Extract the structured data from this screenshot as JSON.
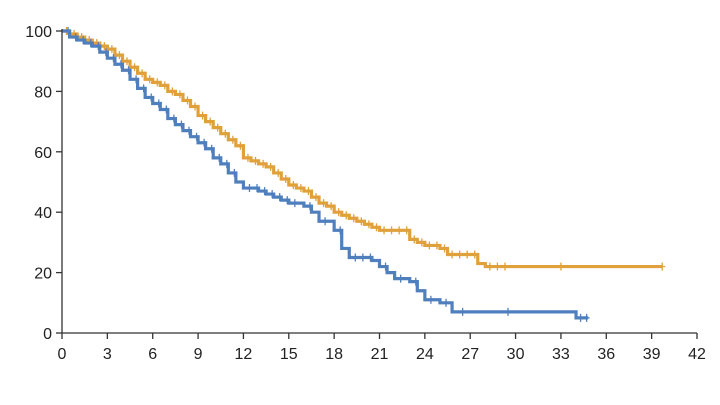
{
  "chart_data": {
    "type": "line",
    "title": "",
    "xlabel": "",
    "ylabel": "",
    "xlim": [
      0,
      42
    ],
    "ylim": [
      0,
      100
    ],
    "xticks": [
      0,
      3,
      6,
      9,
      12,
      15,
      18,
      21,
      24,
      27,
      30,
      33,
      36,
      39,
      42
    ],
    "yticks": [
      0,
      20,
      40,
      60,
      80,
      100
    ],
    "step": true,
    "grid": false,
    "legend": "none",
    "series": [
      {
        "color": "#e0a03a",
        "points": [
          [
            0,
            100
          ],
          [
            0.5,
            99
          ],
          [
            1.0,
            98
          ],
          [
            1.5,
            97
          ],
          [
            2.0,
            96
          ],
          [
            2.5,
            95
          ],
          [
            3.0,
            94
          ],
          [
            3.5,
            92
          ],
          [
            4.0,
            90
          ],
          [
            4.5,
            88
          ],
          [
            5.0,
            86
          ],
          [
            5.5,
            84
          ],
          [
            6.0,
            83
          ],
          [
            6.5,
            82
          ],
          [
            7.0,
            80
          ],
          [
            7.5,
            79
          ],
          [
            8.0,
            77
          ],
          [
            8.5,
            75
          ],
          [
            9.0,
            72
          ],
          [
            9.5,
            70
          ],
          [
            10.0,
            68
          ],
          [
            10.5,
            66
          ],
          [
            11.0,
            64
          ],
          [
            11.5,
            62
          ],
          [
            12.0,
            58
          ],
          [
            12.5,
            57
          ],
          [
            13.0,
            56
          ],
          [
            13.5,
            55
          ],
          [
            14.0,
            53
          ],
          [
            14.5,
            51
          ],
          [
            15.0,
            49
          ],
          [
            15.5,
            48
          ],
          [
            16.0,
            47
          ],
          [
            16.5,
            45
          ],
          [
            17.0,
            43
          ],
          [
            17.5,
            42
          ],
          [
            18.0,
            40
          ],
          [
            18.5,
            39
          ],
          [
            19.0,
            38
          ],
          [
            19.5,
            37
          ],
          [
            20.0,
            36
          ],
          [
            20.5,
            35
          ],
          [
            21.0,
            34
          ],
          [
            22.5,
            34
          ],
          [
            23.0,
            31
          ],
          [
            23.5,
            30
          ],
          [
            24.0,
            29
          ],
          [
            25.0,
            28
          ],
          [
            25.5,
            26
          ],
          [
            27.5,
            23
          ],
          [
            28.0,
            22
          ],
          [
            39.7,
            22
          ]
        ],
        "censored_x": [
          0.3,
          0.8,
          1.3,
          1.8,
          2.3,
          2.8,
          3.3,
          3.8,
          4.3,
          4.8,
          5.3,
          5.8,
          6.3,
          6.8,
          7.3,
          7.8,
          8.3,
          8.8,
          9.3,
          9.8,
          10.3,
          10.8,
          11.3,
          11.8,
          12.3,
          12.8,
          13.3,
          13.8,
          14.3,
          14.8,
          15.3,
          15.8,
          16.3,
          16.8,
          17.3,
          17.8,
          18.3,
          18.8,
          19.3,
          19.8,
          20.3,
          20.8,
          21.3,
          21.8,
          22.3,
          22.8,
          23.3,
          23.8,
          24.3,
          24.8,
          25.3,
          25.8,
          26.3,
          26.8,
          27.3,
          28.3,
          28.8,
          29.3,
          33.0,
          39.7
        ]
      },
      {
        "color": "#4f7fbd",
        "points": [
          [
            0,
            100
          ],
          [
            0.5,
            98
          ],
          [
            1.0,
            97
          ],
          [
            1.5,
            96
          ],
          [
            2.0,
            95
          ],
          [
            2.5,
            93
          ],
          [
            3.0,
            91
          ],
          [
            3.5,
            89
          ],
          [
            4.0,
            87
          ],
          [
            4.5,
            84
          ],
          [
            5.0,
            81
          ],
          [
            5.5,
            78
          ],
          [
            6.0,
            76
          ],
          [
            6.5,
            74
          ],
          [
            7.0,
            71
          ],
          [
            7.5,
            69
          ],
          [
            8.0,
            67
          ],
          [
            8.5,
            65
          ],
          [
            9.0,
            63
          ],
          [
            9.5,
            61
          ],
          [
            10.0,
            58
          ],
          [
            10.5,
            56
          ],
          [
            11.0,
            53
          ],
          [
            11.5,
            50
          ],
          [
            12.0,
            48
          ],
          [
            13.0,
            47
          ],
          [
            13.5,
            46
          ],
          [
            14.0,
            45
          ],
          [
            14.5,
            44
          ],
          [
            15.0,
            43
          ],
          [
            16.0,
            42
          ],
          [
            16.5,
            40
          ],
          [
            17.0,
            37
          ],
          [
            18.0,
            34
          ],
          [
            18.5,
            28
          ],
          [
            19.0,
            25
          ],
          [
            20.5,
            24
          ],
          [
            21.0,
            22
          ],
          [
            21.5,
            20
          ],
          [
            22.0,
            18
          ],
          [
            23.0,
            17
          ],
          [
            23.5,
            14
          ],
          [
            24.0,
            11
          ],
          [
            25.0,
            10
          ],
          [
            25.8,
            7
          ],
          [
            33.8,
            7
          ],
          [
            34.0,
            5
          ],
          [
            34.8,
            5
          ]
        ],
        "censored_x": [
          0.4,
          0.9,
          1.4,
          1.9,
          2.4,
          2.9,
          3.4,
          3.9,
          4.4,
          4.9,
          5.4,
          5.9,
          6.4,
          6.9,
          7.4,
          7.9,
          8.4,
          8.9,
          9.4,
          9.9,
          10.4,
          10.9,
          11.4,
          12.4,
          12.9,
          13.4,
          13.9,
          14.4,
          14.9,
          15.4,
          16.4,
          17.4,
          18.4,
          19.4,
          19.9,
          20.4,
          21.4,
          22.4,
          23.4,
          24.4,
          25.4,
          26.5,
          29.5,
          34.3,
          34.7
        ]
      }
    ]
  }
}
